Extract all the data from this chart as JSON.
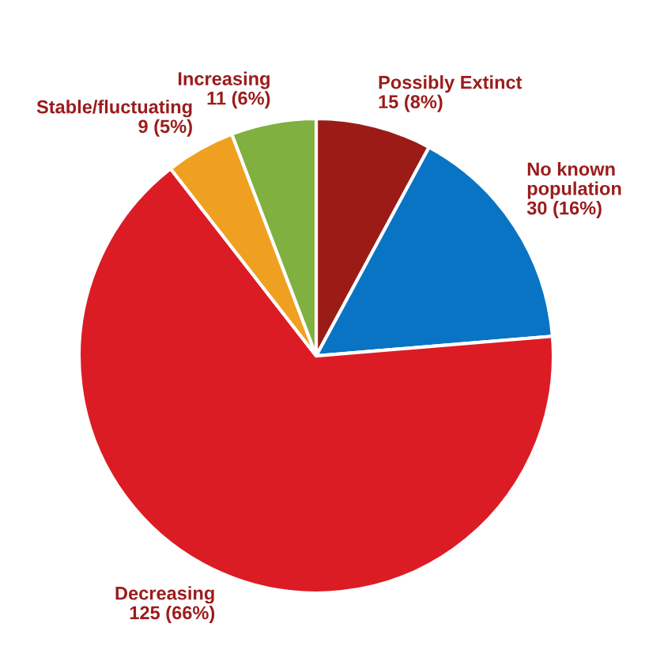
{
  "chart_data": {
    "type": "pie",
    "categories": [
      "Possibly Extinct",
      "No known\npopulation",
      "Decreasing",
      "Stable/fluctuating",
      "Increasing"
    ],
    "values": [
      15,
      30,
      125,
      9,
      11
    ],
    "value_labels": [
      "15 (8%)",
      "30 (16%)",
      "125 (66%)",
      "9 (5%)",
      "11 (6%)"
    ],
    "colors": [
      "#9b1c17",
      "#0a74c4",
      "#dc1c24",
      "#f0a020",
      "#7fb040"
    ],
    "legend": false
  }
}
